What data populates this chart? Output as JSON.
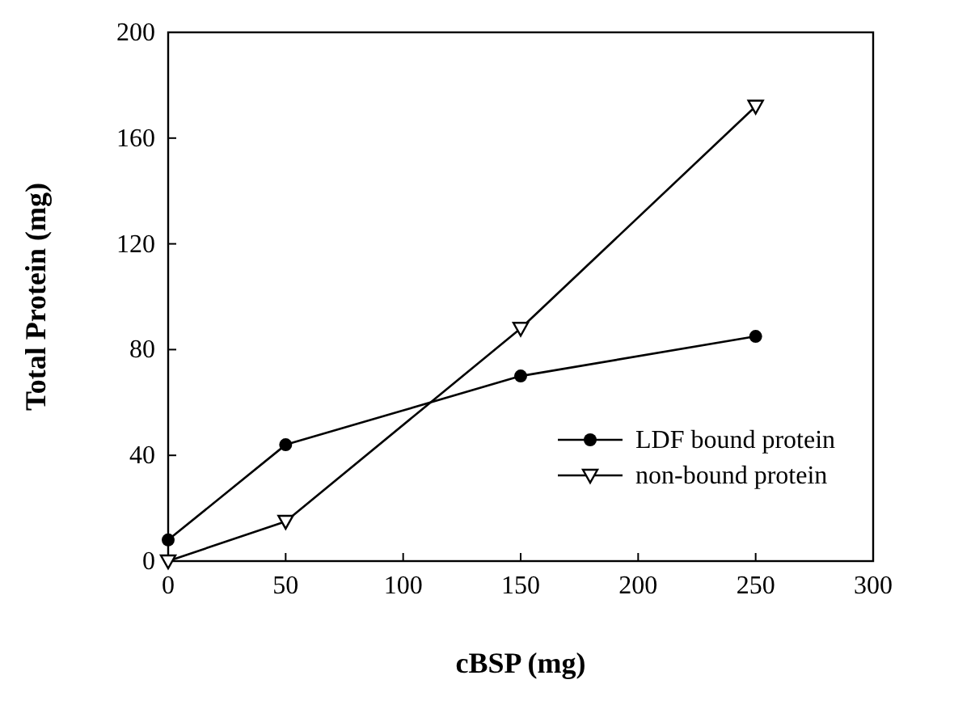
{
  "chart_data": {
    "type": "line",
    "xlabel": "cBSP (mg)",
    "ylabel": "Total Protein (mg)",
    "x": [
      0,
      50,
      150,
      250
    ],
    "series": [
      {
        "name": "LDF bound protein",
        "color": "#000000",
        "values": [
          8,
          44,
          70,
          85
        ],
        "marker": "circle"
      },
      {
        "name": "non-bound protein",
        "color": "#000000",
        "values": [
          0,
          15,
          88,
          172
        ],
        "marker": "triangle"
      }
    ],
    "xlim": [
      0,
      300
    ],
    "xticks": [
      0,
      50,
      100,
      150,
      200,
      250,
      300
    ],
    "ylim": [
      0,
      200
    ],
    "yticks": [
      0,
      40,
      80,
      120,
      160,
      200
    ],
    "grid": false,
    "legend": "bottom right",
    "line_style": "solid"
  }
}
